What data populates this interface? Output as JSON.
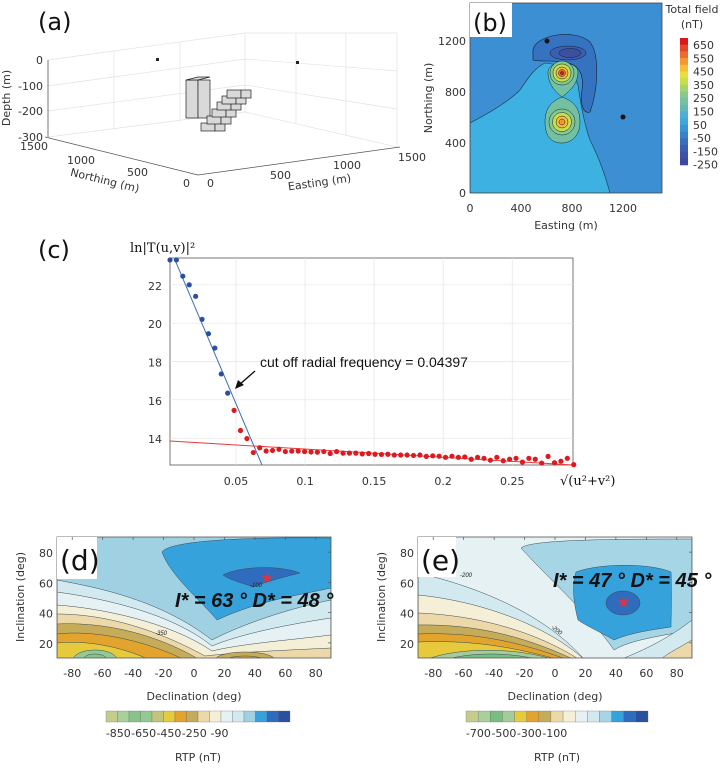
{
  "panels": {
    "a": "(a)",
    "b": "(b)",
    "c": "(c)",
    "d": "(d)",
    "e": "(e)"
  },
  "colors": {
    "blue_points": "#2b4fa0",
    "red_points": "#e0191f",
    "fit_blue": "#3a6fb5",
    "fit_red": "#e83a3a",
    "star": "#e8303a"
  },
  "chart_data": [
    {
      "panel": "a",
      "type": "3d-blocks",
      "xlabel": "Easting (m)",
      "ylabel": "Northing (m)",
      "zlabel": "Depth (m)",
      "xticks": [
        "0",
        "500",
        "1000",
        "1500"
      ],
      "yticks": [
        "0",
        "500",
        "1000",
        "1500"
      ],
      "zticks": [
        "0",
        "-100",
        "-200",
        "-300"
      ],
      "xlim": [
        0,
        1500
      ],
      "ylim": [
        0,
        1500
      ],
      "zlim": [
        -300,
        0
      ]
    },
    {
      "panel": "b",
      "type": "contour",
      "xlabel": "Easting (m)",
      "ylabel": "Northing (m)",
      "xticks": [
        "0",
        "400",
        "800",
        "1200"
      ],
      "yticks": [
        "0",
        "400",
        "800",
        "1200"
      ],
      "xlim": [
        0,
        1500
      ],
      "ylim": [
        0,
        1500
      ],
      "colorbar_title": [
        "Total field",
        "(nT)"
      ],
      "colorbar_labels": [
        "650",
        "550",
        "450",
        "350",
        "250",
        "150",
        "50",
        "-50",
        "-150",
        "-250"
      ],
      "colorbar_colors": [
        "#d7191c",
        "#e6452a",
        "#ef6c2f",
        "#f39733",
        "#f5bd36",
        "#eadf3a",
        "#c9de4f",
        "#a5d46d",
        "#87c98a",
        "#74c0a2",
        "#62b8b8",
        "#4eafd2",
        "#3fa7dc",
        "#3a95d3",
        "#3a82c8",
        "#3a6fbc",
        "#3b5fb0",
        "#3d51a5",
        "#3e489e"
      ]
    },
    {
      "panel": "c",
      "type": "scatter",
      "ylabel": "ln|T(u,v)|²",
      "xlabel": "√(u²+v²)",
      "xticks": [
        "0.05",
        "0.1",
        "0.15",
        "0.2",
        "0.25"
      ],
      "yticks": [
        "14",
        "16",
        "18",
        "20",
        "22"
      ],
      "xlim": [
        0.0022,
        0.294
      ],
      "ylim": [
        12.6,
        23.4
      ],
      "grid": true,
      "annotation": "cut off radial frequency = 0.04397",
      "x_start": 0.0022,
      "x_step": 0.00464,
      "blue_values": [
        23.3,
        23.3,
        22.45,
        22.0,
        21.4,
        20.2,
        19.45,
        18.7,
        17.35,
        16.35
      ],
      "red_values": [
        15.45,
        14.4,
        13.98,
        13.25,
        13.5,
        13.33,
        13.36,
        13.42,
        13.3,
        13.32,
        13.33,
        13.3,
        13.28,
        13.27,
        13.3,
        13.2,
        13.3,
        13.22,
        13.22,
        13.22,
        13.18,
        13.2,
        13.16,
        13.15,
        13.16,
        13.12,
        13.12,
        13.12,
        13.1,
        13.12,
        13.05,
        13.08,
        13.06,
        13.0,
        13.06,
        13.0,
        13.02,
        12.9,
        13.0,
        12.95,
        12.85,
        13.0,
        12.82,
        12.9,
        12.95,
        12.75,
        12.95,
        12.9,
        12.7,
        13.05,
        12.72,
        12.8,
        12.95,
        12.62
      ],
      "blue_fit": [
        [
          0.0058,
          23.3
        ],
        [
          0.0688,
          12.6
        ]
      ],
      "red_fit": [
        [
          0.0022,
          13.85
        ],
        [
          0.294,
          12.6
        ]
      ]
    },
    {
      "panel": "d",
      "type": "contour",
      "xlabel": "Declination (deg)",
      "ylabel": "Inclination (deg)",
      "xticks": [
        "-80",
        "-60",
        "-40",
        "-20",
        "0",
        "20",
        "40",
        "60",
        "80"
      ],
      "yticks": [
        "20",
        "40",
        "60",
        "80"
      ],
      "xlim": [
        -90,
        90
      ],
      "ylim": [
        10,
        90
      ],
      "annotation": "I* = 63 °  D* = 48 °",
      "optimum": {
        "inclination": 63,
        "declination": 48
      },
      "contour_labels": [
        "-350",
        "-100"
      ],
      "colorbar_title": "RTP (nT)",
      "colorbar_labels": [
        "-850",
        "-650",
        "-450",
        "-250",
        "-90"
      ],
      "colorbar_colors": [
        "#c6cc8c",
        "#a9d09b",
        "#86c48b",
        "#93c994",
        "#c2c47c",
        "#e7c93c",
        "#e2a42c",
        "#c6ac58",
        "#ecd8a8",
        "#f5efd7",
        "#e5f1f2",
        "#d2eaef",
        "#9fd1e3",
        "#35a2dc",
        "#2f6cbd",
        "#2a50a0"
      ]
    },
    {
      "panel": "e",
      "type": "contour",
      "xlabel": "Declination (deg)",
      "ylabel": "Inclination (deg)",
      "xticks": [
        "-80",
        "-60",
        "-40",
        "-20",
        "0",
        "20",
        "40",
        "60",
        "80"
      ],
      "yticks": [
        "20",
        "40",
        "60",
        "80"
      ],
      "xlim": [
        -90,
        90
      ],
      "ylim": [
        10,
        90
      ],
      "annotation": "I* = 47 °  D* = 45 °",
      "optimum": {
        "inclination": 47,
        "declination": 45
      },
      "contour_labels": [
        "-200",
        "-200"
      ],
      "colorbar_title": "RTP (nT)",
      "colorbar_labels": [
        "-700",
        "-500",
        "-300",
        "-100"
      ],
      "colorbar_colors": [
        "#c6cc8c",
        "#a9d09b",
        "#77bf80",
        "#a3cc9a",
        "#e7c93c",
        "#e2a42c",
        "#c6ac58",
        "#ecd8a8",
        "#f5efd7",
        "#e5f1f2",
        "#d2eaef",
        "#a6d5e5",
        "#35a2dc",
        "#2f6cbd",
        "#2a50a0"
      ]
    }
  ]
}
